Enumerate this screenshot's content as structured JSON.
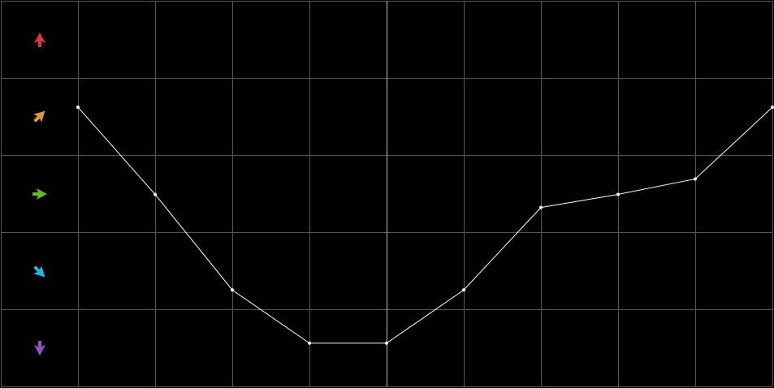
{
  "chart_data": {
    "type": "line",
    "x": [
      1,
      2,
      3,
      4,
      5,
      6,
      7,
      8,
      9,
      10
    ],
    "series": [
      {
        "color": "#ffffff",
        "values": [
          3.62,
          2.49,
          1.25,
          0.56,
          0.56,
          1.25,
          2.32,
          2.49,
          2.69,
          3.62
        ]
      }
    ],
    "xlim": [
      0,
      10
    ],
    "xticks": [
      0,
      1,
      2,
      3,
      4,
      5,
      6,
      7,
      8,
      9,
      10
    ],
    "ylim": [
      0,
      5
    ],
    "yticks": [
      0,
      1,
      2,
      3,
      4,
      5
    ],
    "grid": true
  }
}
